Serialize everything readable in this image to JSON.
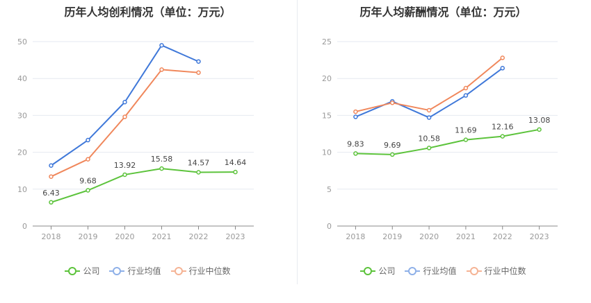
{
  "chart_data": [
    {
      "type": "line",
      "title": "历年人均创利情况（单位：万元）",
      "categories": [
        "2018",
        "2019",
        "2020",
        "2021",
        "2022",
        "2023"
      ],
      "ylim": [
        0,
        50
      ],
      "yticks": [
        0,
        10,
        20,
        30,
        40,
        50
      ],
      "grid": true,
      "legend_position": "bottom",
      "series": [
        {
          "name": "公司",
          "color": "#5cc33b",
          "values": [
            6.43,
            9.68,
            13.92,
            15.58,
            14.57,
            14.64
          ],
          "labels": [
            "6.43",
            "9.68",
            "13.92",
            "15.58",
            "14.57",
            "14.64"
          ]
        },
        {
          "name": "行业均值",
          "color": "#3f78d9",
          "values": [
            16.4,
            23.3,
            33.6,
            49.0,
            44.6,
            null
          ]
        },
        {
          "name": "行业中位数",
          "color": "#f0875b",
          "values": [
            13.4,
            18.1,
            29.6,
            42.4,
            41.6,
            null
          ]
        }
      ]
    },
    {
      "type": "line",
      "title": "历年人均薪酬情况（单位：万元）",
      "categories": [
        "2018",
        "2019",
        "2020",
        "2021",
        "2022",
        "2023"
      ],
      "ylim": [
        0,
        25
      ],
      "yticks": [
        0,
        5,
        10,
        15,
        20,
        25
      ],
      "grid": true,
      "legend_position": "bottom",
      "series": [
        {
          "name": "公司",
          "color": "#5cc33b",
          "values": [
            9.83,
            9.69,
            10.58,
            11.69,
            12.16,
            13.08
          ],
          "labels": [
            "9.83",
            "9.69",
            "10.58",
            "11.69",
            "12.16",
            "13.08"
          ]
        },
        {
          "name": "行业均值",
          "color": "#3f78d9",
          "values": [
            14.8,
            16.9,
            14.7,
            17.7,
            21.4,
            null
          ]
        },
        {
          "name": "行业中位数",
          "color": "#f0875b",
          "values": [
            15.5,
            16.7,
            15.7,
            18.7,
            22.8,
            null
          ]
        }
      ]
    }
  ],
  "legend": {
    "items": [
      {
        "label": "公司",
        "color": "#5cc33b"
      },
      {
        "label": "行业均值",
        "color": "#8eb0e8"
      },
      {
        "label": "行业中位数",
        "color": "#f5b394"
      }
    ]
  }
}
